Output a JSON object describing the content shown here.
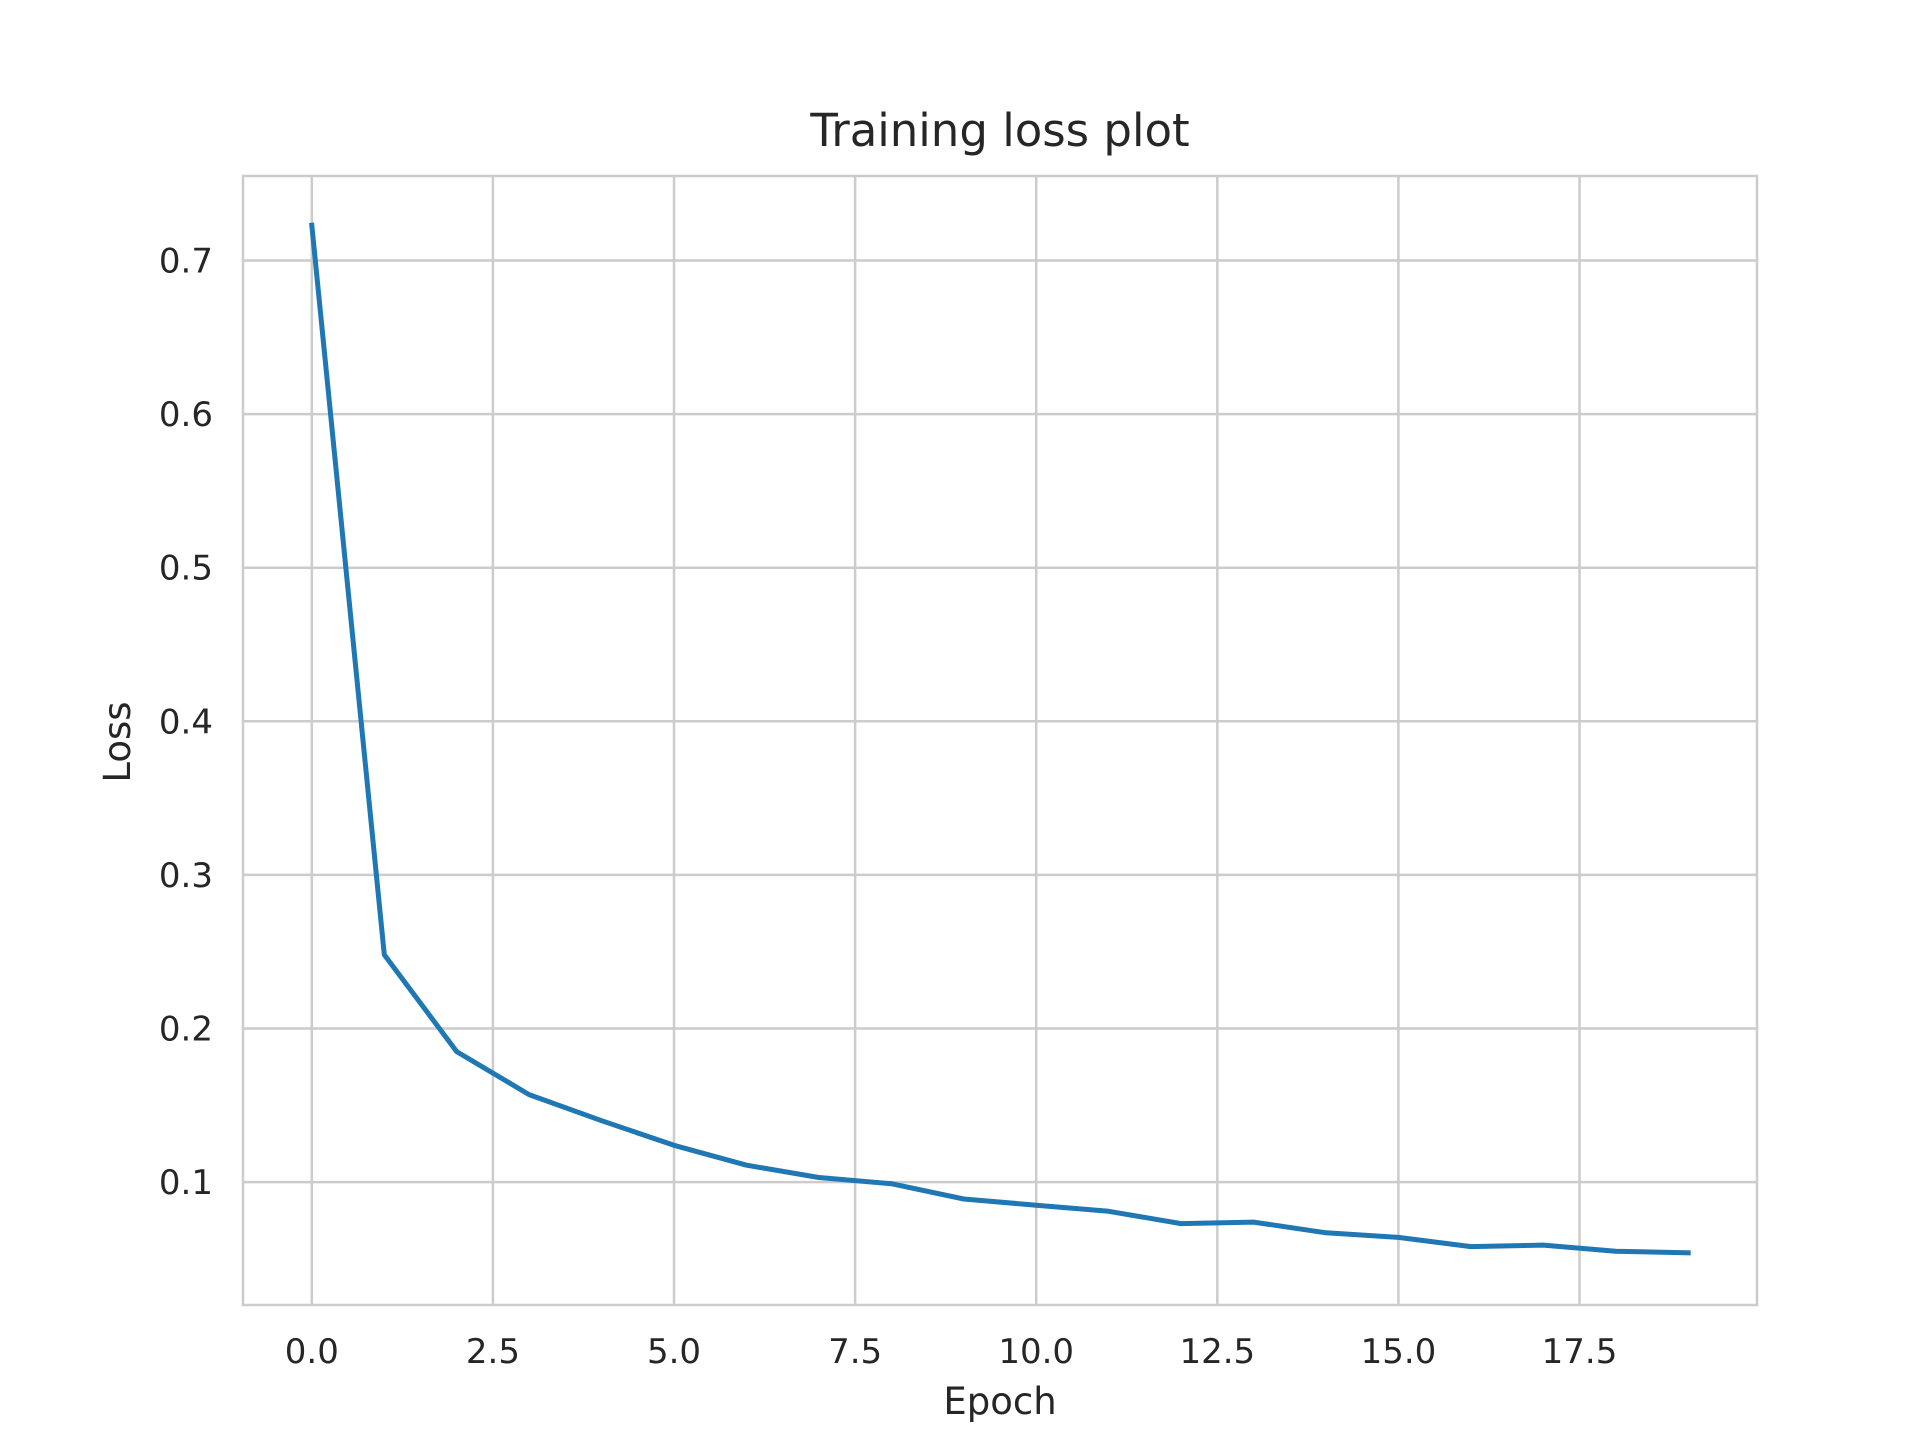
{
  "chart_data": {
    "type": "line",
    "title": "Training loss plot",
    "xlabel": "Epoch",
    "ylabel": "Loss",
    "xlim": [
      -0.95,
      19.95
    ],
    "ylim": [
      0.02,
      0.755
    ],
    "xticks": [
      0.0,
      2.5,
      5.0,
      7.5,
      10.0,
      12.5,
      15.0,
      17.5
    ],
    "xtick_labels": [
      "0.0",
      "2.5",
      "5.0",
      "7.5",
      "10.0",
      "12.5",
      "15.0",
      "17.5"
    ],
    "yticks": [
      0.1,
      0.2,
      0.3,
      0.4,
      0.5,
      0.6,
      0.7
    ],
    "ytick_labels": [
      "0.1",
      "0.2",
      "0.3",
      "0.4",
      "0.5",
      "0.6",
      "0.7"
    ],
    "grid": true,
    "series": [
      {
        "color": "#1f77b4",
        "x": [
          0,
          1,
          2,
          3,
          4,
          5,
          6,
          7,
          8,
          9,
          10,
          11,
          12,
          13,
          14,
          15,
          16,
          17,
          18,
          19
        ],
        "y": [
          0.723,
          0.248,
          0.185,
          0.157,
          0.14,
          0.124,
          0.111,
          0.103,
          0.099,
          0.089,
          0.085,
          0.081,
          0.073,
          0.074,
          0.067,
          0.064,
          0.058,
          0.059,
          0.055,
          0.054
        ]
      }
    ]
  }
}
